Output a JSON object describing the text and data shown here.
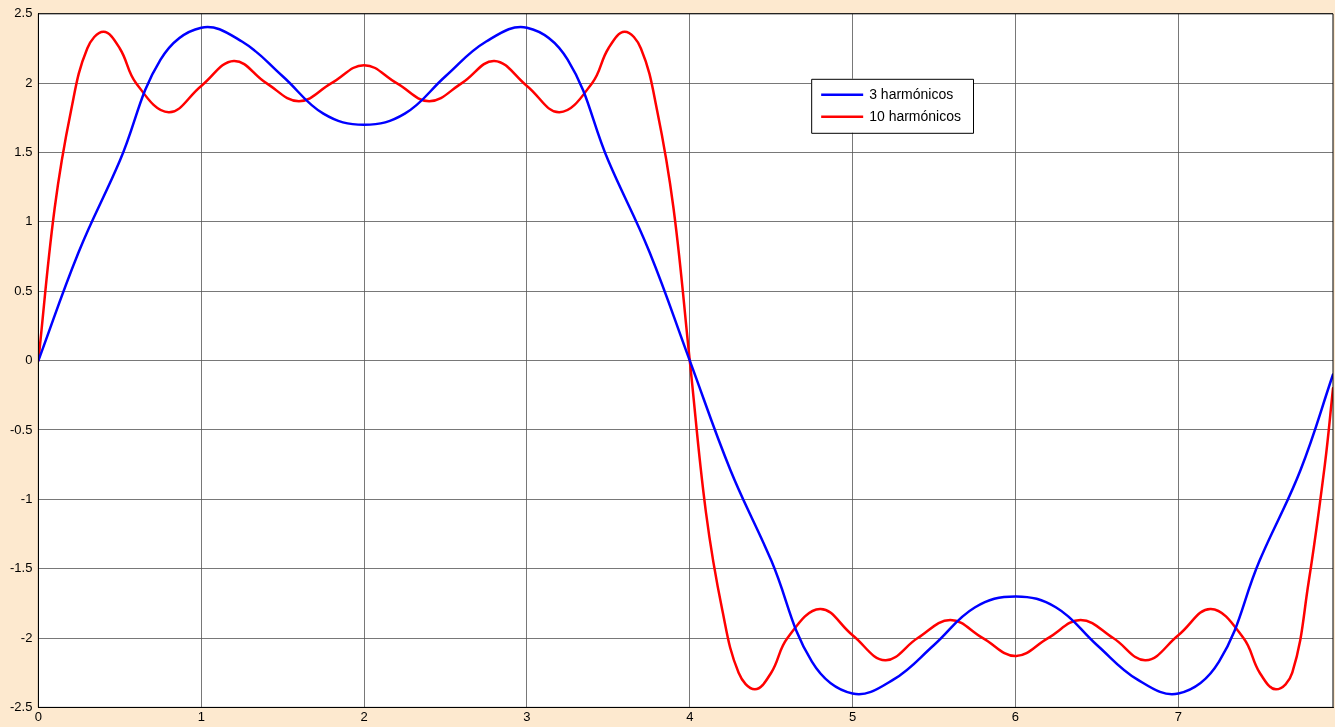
{
  "chart_data": {
    "type": "line",
    "xlim": [
      0,
      7.95
    ],
    "xticks": [
      0,
      1,
      2,
      3,
      4,
      5,
      6,
      7
    ],
    "ylim": [
      -2.5,
      2.5
    ],
    "yticks": [
      -2.5,
      -2,
      -1.5,
      -1,
      -0.5,
      0,
      0.5,
      1,
      1.5,
      2,
      2.5
    ],
    "grid": true,
    "legend": "top right",
    "marker": "none",
    "line_style": "solid",
    "series": [
      {
        "name": "3 harmónicos",
        "color": "#0000ff",
        "x": [
          0,
          0.25,
          0.5,
          0.75,
          1,
          1.25,
          1.5,
          1.75,
          2,
          2.25,
          2.5,
          2.75,
          3,
          3.25,
          3.5,
          3.75,
          4,
          4.25,
          4.5,
          4.75,
          5,
          5.25,
          5.5,
          5.75,
          6,
          6.25,
          6.5,
          6.75,
          7,
          7.25,
          7.5,
          7.75,
          7.95
        ],
        "values": [
          0,
          0.79,
          1.44,
          2.17,
          2.4,
          2.3,
          2.05,
          1.78,
          1.7,
          1.78,
          2.05,
          2.3,
          2.4,
          2.17,
          1.44,
          0.79,
          0,
          -0.79,
          -1.44,
          -2.17,
          -2.4,
          -2.3,
          -2.05,
          -1.78,
          -1.7,
          -1.78,
          -2.05,
          -2.3,
          -2.4,
          -2.17,
          -1.44,
          -0.79,
          -0.1
        ]
      },
      {
        "name": "10 harmónicos",
        "color": "#ff0000",
        "x": [
          0,
          0.1,
          0.2,
          0.3,
          0.4,
          0.5,
          0.6,
          0.8,
          1,
          1.2,
          1.4,
          1.6,
          1.8,
          2,
          2.2,
          2.4,
          2.6,
          2.8,
          3,
          3.2,
          3.4,
          3.5,
          3.6,
          3.7,
          3.8,
          3.9,
          4,
          4.1,
          4.2,
          4.3,
          4.4,
          4.5,
          4.6,
          4.8,
          5,
          5.2,
          5.4,
          5.6,
          5.8,
          6,
          6.2,
          6.4,
          6.6,
          6.8,
          7,
          7.2,
          7.4,
          7.5,
          7.6,
          7.7,
          7.8,
          7.9,
          7.95
        ],
        "values": [
          0,
          1.1,
          1.8,
          2.25,
          2.37,
          2.25,
          2.0,
          1.79,
          1.98,
          2.16,
          2.0,
          1.87,
          2.0,
          2.13,
          2.0,
          1.87,
          2.0,
          2.16,
          1.98,
          1.79,
          2.0,
          2.25,
          2.37,
          2.25,
          1.8,
          1.1,
          0,
          -1.1,
          -1.8,
          -2.25,
          -2.37,
          -2.25,
          -2.0,
          -1.79,
          -1.98,
          -2.16,
          -2.0,
          -1.87,
          -2.0,
          -2.13,
          -2.0,
          -1.87,
          -2.0,
          -2.16,
          -1.98,
          -1.79,
          -2.0,
          -2.25,
          -2.37,
          -2.25,
          -1.6,
          -0.75,
          -0.2
        ]
      }
    ]
  }
}
